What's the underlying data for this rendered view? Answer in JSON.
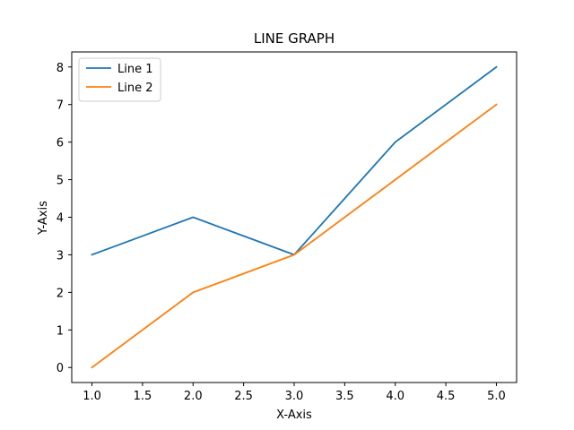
{
  "chart_data": {
    "type": "line",
    "title": "LINE GRAPH",
    "xlabel": "X-Axis",
    "ylabel": "Y-Axis",
    "xlim": [
      0.8,
      5.2
    ],
    "ylim": [
      -0.4,
      8.4
    ],
    "xticks": [
      "1.0",
      "1.5",
      "2.0",
      "2.5",
      "3.0",
      "3.5",
      "4.0",
      "4.5",
      "5.0"
    ],
    "yticks": [
      "0",
      "1",
      "2",
      "3",
      "4",
      "5",
      "6",
      "7",
      "8"
    ],
    "grid": false,
    "legend_position": "top-left",
    "x": [
      1,
      2,
      3,
      4,
      5
    ],
    "series": [
      {
        "name": "Line 1",
        "values": [
          3,
          4,
          3,
          6,
          8
        ],
        "color": "#1f77b4"
      },
      {
        "name": "Line 2",
        "values": [
          0,
          2,
          3,
          5,
          7
        ],
        "color": "#ff7f0e"
      }
    ]
  }
}
